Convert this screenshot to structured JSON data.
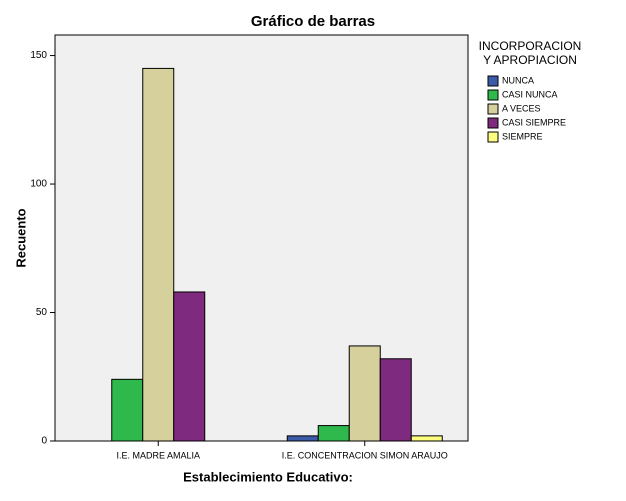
{
  "chart_data": {
    "type": "bar",
    "title": "Gráfico de barras",
    "x_label": "Establecimiento Educativo:",
    "y_label": "Recuento",
    "legend_title": [
      "INCORPORACION",
      "Y APROPIACION"
    ],
    "categories": [
      "I.E. MADRE AMALIA",
      "I.E. CONCENTRACION SIMON ARAUJO"
    ],
    "series": [
      {
        "name": "NUNCA",
        "color": "#3b5ba9",
        "values": [
          0,
          2
        ]
      },
      {
        "name": "CASI NUNCA",
        "color": "#2fb84b",
        "values": [
          24,
          6
        ]
      },
      {
        "name": "A VECES",
        "color": "#d6d09c",
        "values": [
          145,
          37
        ]
      },
      {
        "name": "CASI SIEMPRE",
        "color": "#7e2a7e",
        "values": [
          58,
          32
        ]
      },
      {
        "name": "SIEMPRE",
        "color": "#fcfc7e",
        "values": [
          0,
          2
        ]
      }
    ],
    "ylim": [
      0,
      158
    ],
    "yticks": [
      0,
      50,
      100,
      150
    ],
    "legend": "right"
  }
}
